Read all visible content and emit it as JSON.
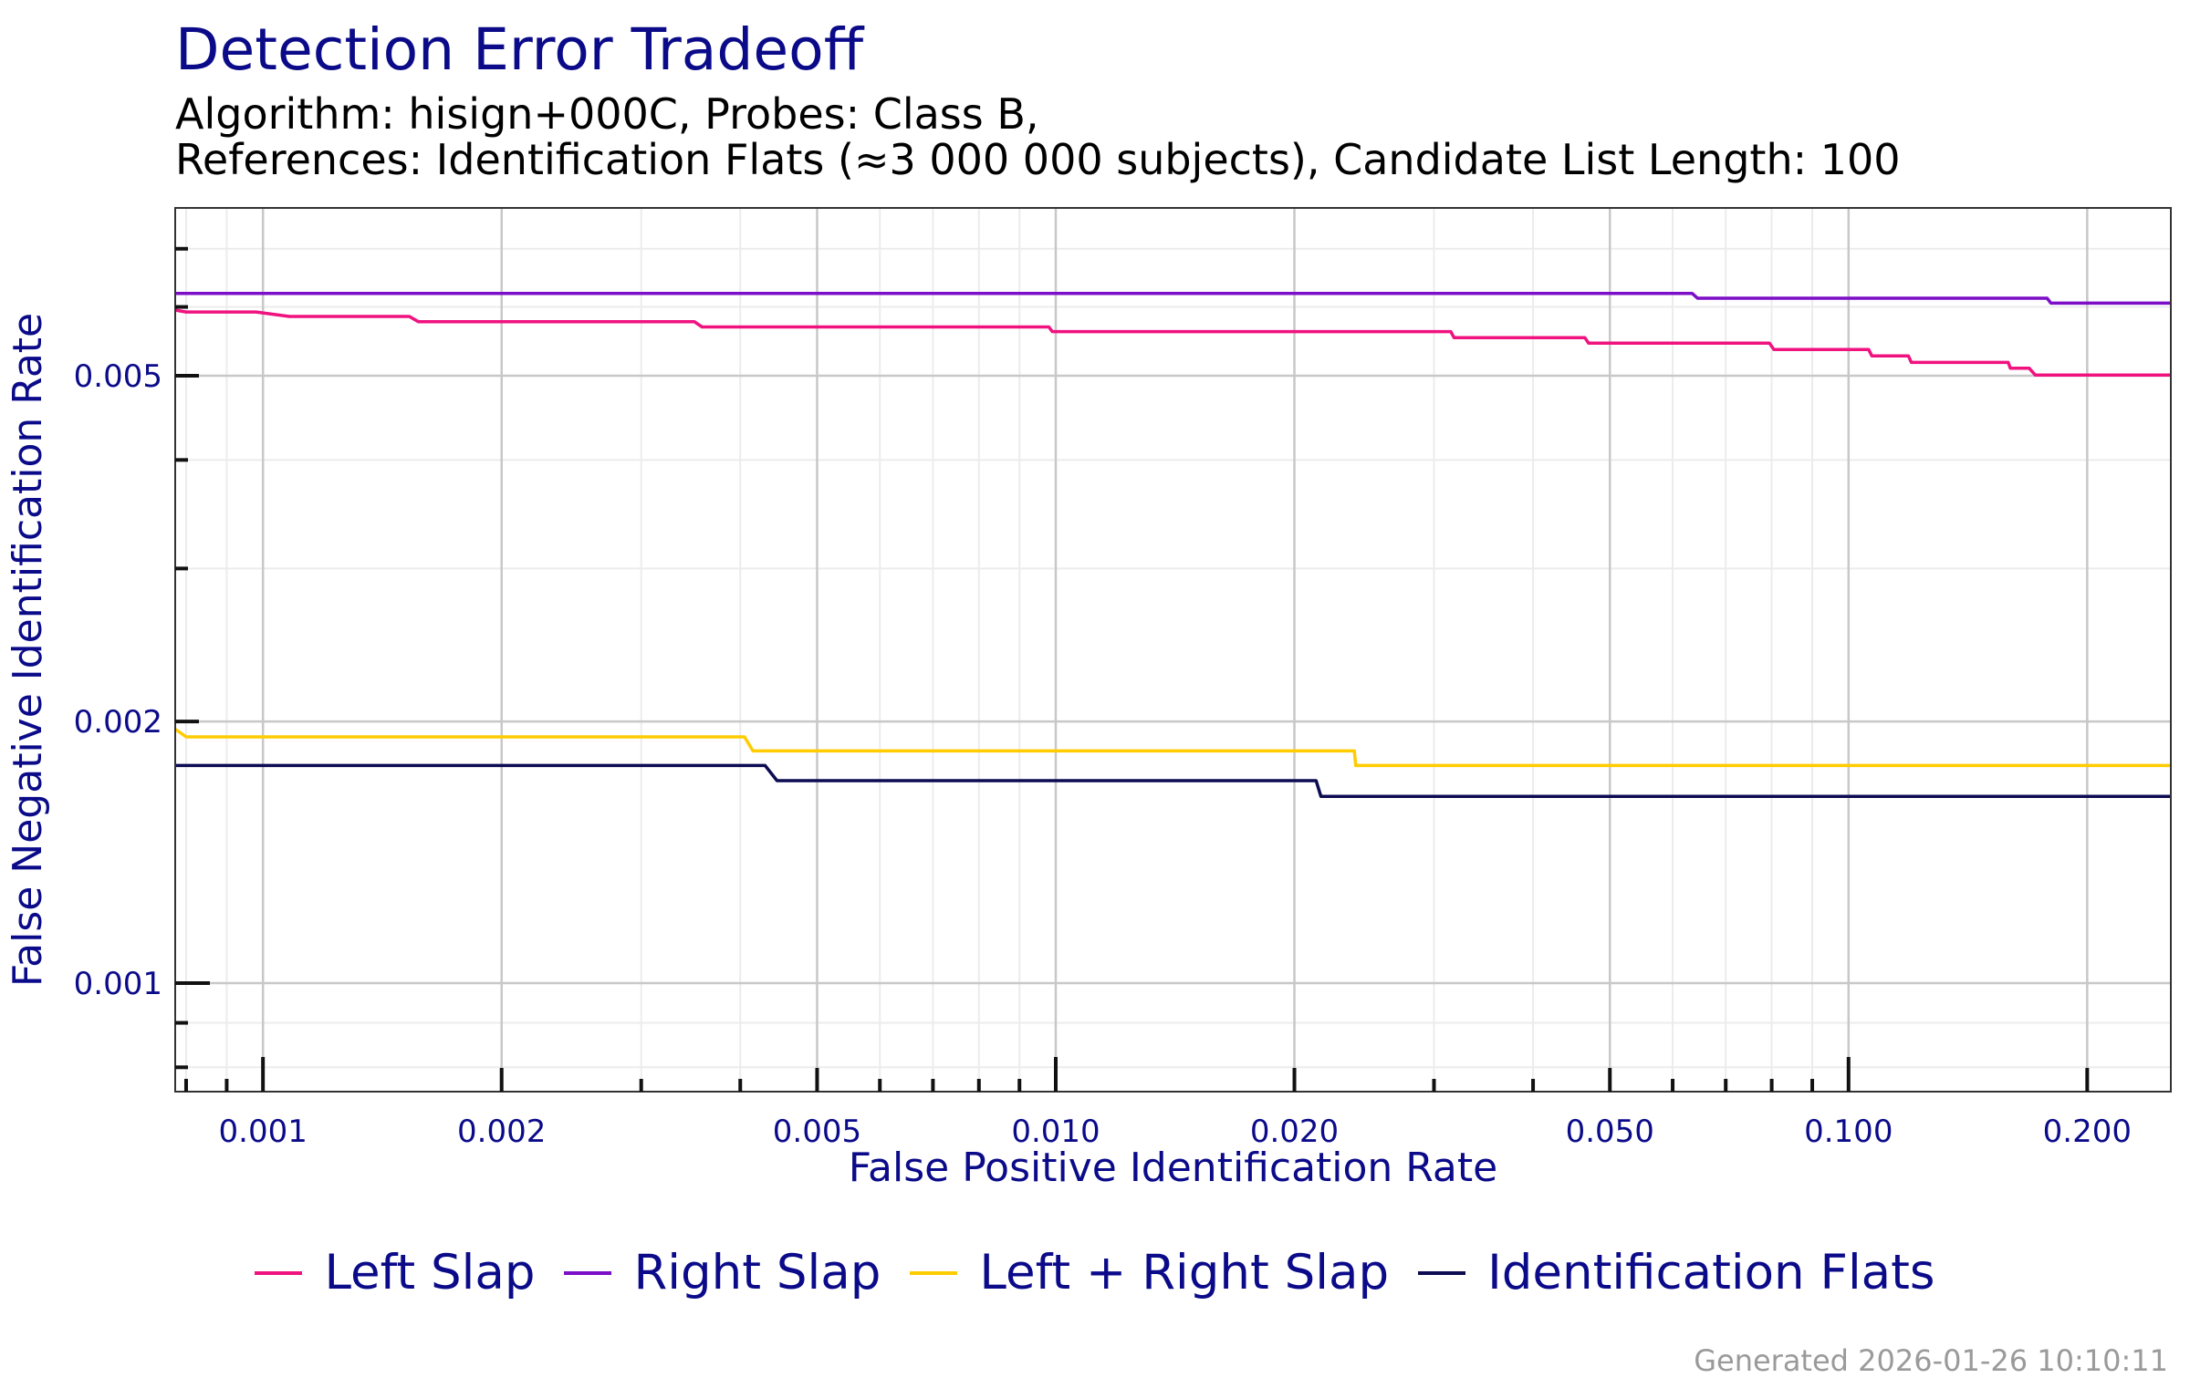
{
  "chart_data": {
    "type": "line",
    "title": "Detection Error Tradeoff",
    "subtitle_lines": [
      "Algorithm: hisign+000C, Probes: Class B,",
      "References: Identification Flats (≈3 000 000 subjects), Candidate List Length: 100"
    ],
    "xlabel": "False Positive Identification Rate",
    "ylabel": "False Negative Identification Rate",
    "xscale": "log",
    "yscale": "log",
    "xlim": [
      0.000775,
      0.255
    ],
    "ylim": [
      0.00075,
      0.0078
    ],
    "grid": true,
    "legend_position": "bottom",
    "x_ticks": [
      {
        "value": 0.001,
        "label": "0.001"
      },
      {
        "value": 0.002,
        "label": "0.002"
      },
      {
        "value": 0.005,
        "label": "0.005"
      },
      {
        "value": 0.01,
        "label": "0.010"
      },
      {
        "value": 0.02,
        "label": "0.020"
      },
      {
        "value": 0.05,
        "label": "0.050"
      },
      {
        "value": 0.1,
        "label": "0.100"
      },
      {
        "value": 0.2,
        "label": "0.200"
      }
    ],
    "y_ticks": [
      {
        "value": 0.001,
        "label": "0.001"
      },
      {
        "value": 0.002,
        "label": "0.002"
      },
      {
        "value": 0.005,
        "label": "0.005"
      }
    ],
    "series": [
      {
        "name": "Left Slap",
        "color": "#f0127f",
        "points": [
          [
            0.000775,
            0.00595
          ],
          [
            0.0008,
            0.00592
          ],
          [
            0.00098,
            0.00592
          ],
          [
            0.00108,
            0.00585
          ],
          [
            0.00153,
            0.00585
          ],
          [
            0.00157,
            0.00577
          ],
          [
            0.0035,
            0.00577
          ],
          [
            0.00358,
            0.00569
          ],
          [
            0.0098,
            0.00569
          ],
          [
            0.0099,
            0.00562
          ],
          [
            0.0315,
            0.00562
          ],
          [
            0.0318,
            0.00553
          ],
          [
            0.0465,
            0.00553
          ],
          [
            0.047,
            0.00545
          ],
          [
            0.0795,
            0.00545
          ],
          [
            0.0805,
            0.00536
          ],
          [
            0.106,
            0.00536
          ],
          [
            0.107,
            0.00527
          ],
          [
            0.119,
            0.00527
          ],
          [
            0.12,
            0.00518
          ],
          [
            0.159,
            0.00518
          ],
          [
            0.16,
            0.0051
          ],
          [
            0.169,
            0.0051
          ],
          [
            0.172,
            0.00501
          ],
          [
            0.255,
            0.00501
          ]
        ]
      },
      {
        "name": "Right Slap",
        "color": "#7c0ec8",
        "points": [
          [
            0.000775,
            0.00622
          ],
          [
            0.0635,
            0.00622
          ],
          [
            0.0645,
            0.00614
          ],
          [
            0.178,
            0.00614
          ],
          [
            0.18,
            0.00606
          ],
          [
            0.255,
            0.00606
          ]
        ]
      },
      {
        "name": "Left + Right Slap",
        "color": "#ffcc00",
        "points": [
          [
            0.000775,
            0.00196
          ],
          [
            0.0008,
            0.00192
          ],
          [
            0.00405,
            0.00192
          ],
          [
            0.00415,
            0.00185
          ],
          [
            0.0238,
            0.00185
          ],
          [
            0.0239,
            0.00178
          ],
          [
            0.255,
            0.00178
          ]
        ]
      },
      {
        "name": "Identification Flats",
        "color": "#0d0b52",
        "points": [
          [
            0.000775,
            0.00178
          ],
          [
            0.0043,
            0.00178
          ],
          [
            0.00445,
            0.00171
          ],
          [
            0.0213,
            0.00171
          ],
          [
            0.0216,
            0.00164
          ],
          [
            0.255,
            0.00164
          ]
        ]
      }
    ]
  },
  "footer": {
    "generated": "Generated 2026-01-26 10:10:11"
  }
}
